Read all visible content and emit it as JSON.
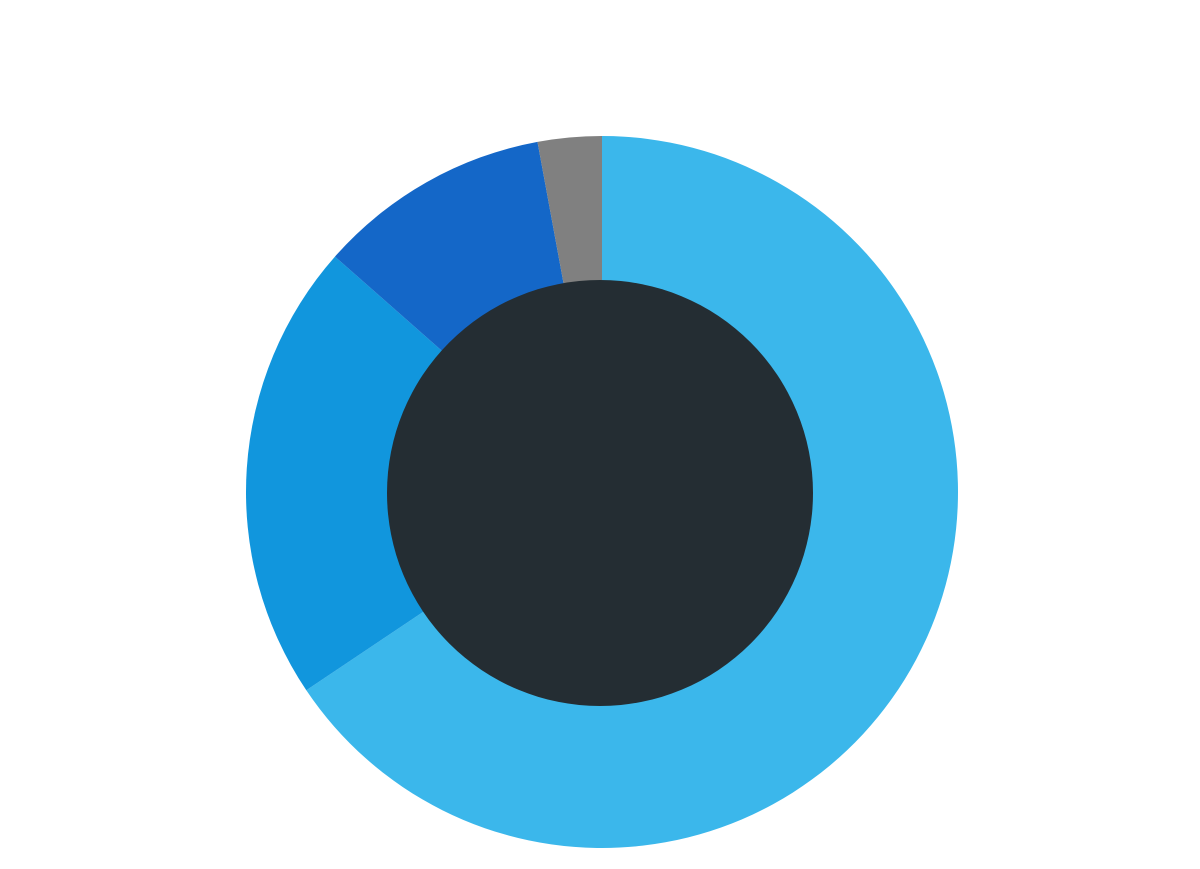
{
  "chart_data": {
    "type": "donut",
    "values": [
      65.6,
      20.9,
      10.6,
      2.9
    ],
    "colors": [
      "#3bb7eb",
      "#1196dd",
      "#1467c8",
      "#808080"
    ]
  }
}
